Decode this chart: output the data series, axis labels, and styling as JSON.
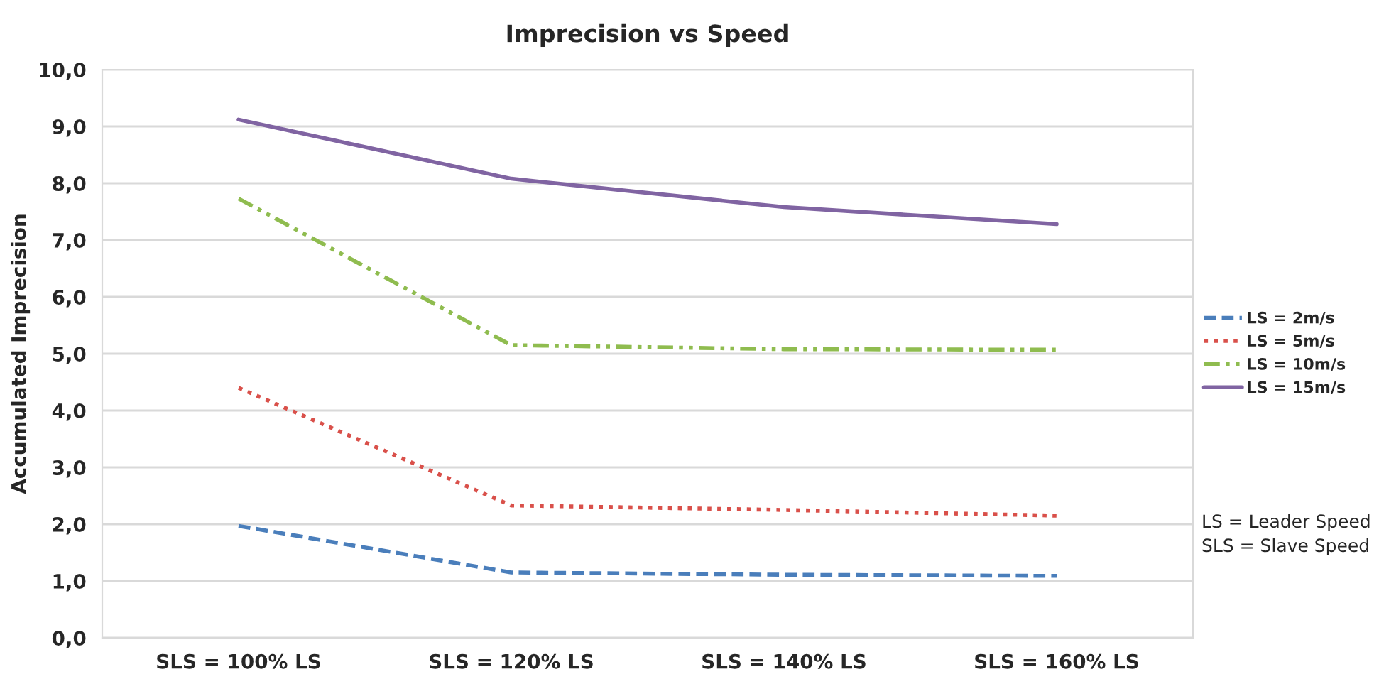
{
  "chart_data": {
    "type": "line",
    "title": "Imprecision vs Speed",
    "ylabel": "Accumulated Imprecision",
    "categories": [
      "SLS = 100% LS",
      "SLS = 120% LS",
      "SLS = 140% LS",
      "SLS = 160% LS"
    ],
    "series": [
      {
        "name": "LS = 2m/s",
        "color": "#4a7ebb",
        "line_style": "dashed",
        "values": [
          1.97,
          1.15,
          1.11,
          1.09
        ]
      },
      {
        "name": "LS = 5m/s",
        "color": "#d9504a",
        "line_style": "dotted",
        "values": [
          4.4,
          2.33,
          2.25,
          2.15
        ]
      },
      {
        "name": "LS = 10m/s",
        "color": "#8fbc4f",
        "line_style": "dashdot",
        "values": [
          7.73,
          5.15,
          5.08,
          5.07
        ]
      },
      {
        "name": "LS = 15m/s",
        "color": "#8064a2",
        "line_style": "solid",
        "values": [
          9.12,
          8.08,
          7.58,
          7.28
        ]
      }
    ],
    "ylim": [
      0,
      10
    ],
    "yticks": [
      {
        "value": 0,
        "label": "0,0"
      },
      {
        "value": 1,
        "label": "1,0"
      },
      {
        "value": 2,
        "label": "2,0"
      },
      {
        "value": 3,
        "label": "3,0"
      },
      {
        "value": 4,
        "label": "4,0"
      },
      {
        "value": 5,
        "label": "5,0"
      },
      {
        "value": 6,
        "label": "6,0"
      },
      {
        "value": 7,
        "label": "7,0"
      },
      {
        "value": 8,
        "label": "8,0"
      },
      {
        "value": 9,
        "label": "9,0"
      },
      {
        "value": 10,
        "label": "10,0"
      }
    ],
    "grid": "y",
    "legend": "right",
    "marker": "none",
    "annotations": [
      "LS = Leader Speed",
      "SLS = Slave Speed"
    ]
  }
}
